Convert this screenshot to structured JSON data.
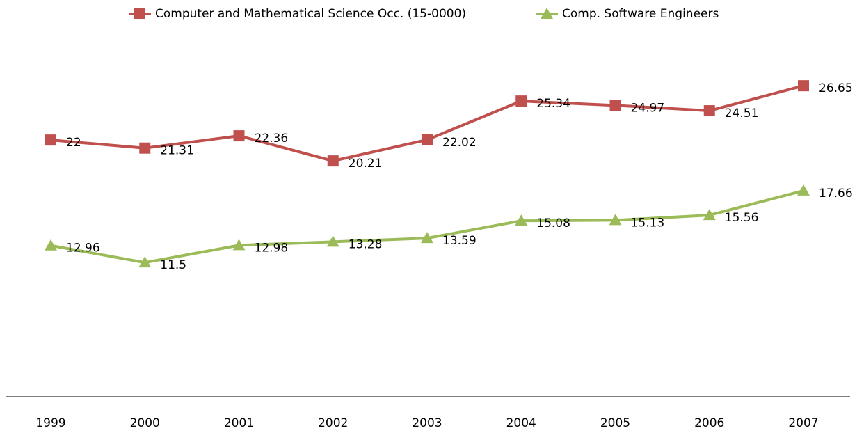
{
  "chart_data": {
    "type": "line",
    "categories": [
      "1999",
      "2000",
      "2001",
      "2002",
      "2003",
      "2004",
      "2005",
      "2006",
      "2007"
    ],
    "series": [
      {
        "name": "Computer and Mathematical  Science Occ. (15-0000)",
        "color": "#c0504d",
        "marker": "square",
        "values": [
          22,
          21.31,
          22.36,
          20.21,
          22.02,
          25.34,
          24.97,
          24.51,
          26.65
        ]
      },
      {
        "name": "Comp. Software Engineers",
        "color": "#9bbb59",
        "marker": "triangle",
        "values": [
          12.96,
          11.5,
          12.98,
          13.28,
          13.59,
          15.08,
          15.13,
          15.56,
          17.66
        ]
      }
    ],
    "ylim": [
      0,
      30
    ],
    "legend": "top",
    "data_labels": true
  }
}
